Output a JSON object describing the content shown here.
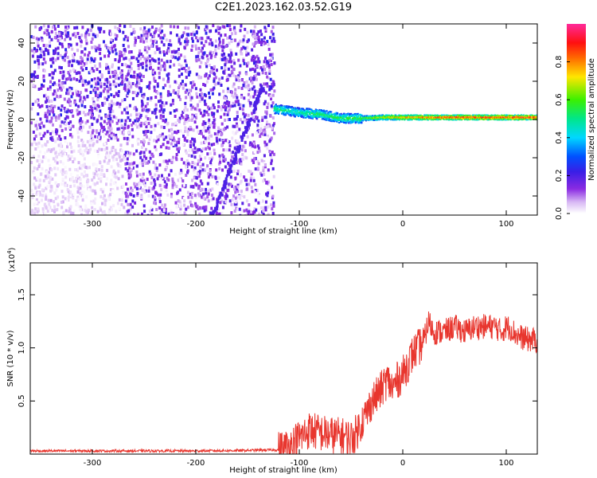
{
  "title": "C2E1.2023.162.03.52.G19",
  "colors": {
    "snr_line": "#e8362e",
    "axis": "#000000"
  },
  "chart_data": [
    {
      "type": "heatmap",
      "xlabel": "Height of straight line (km)",
      "ylabel": "Frequency (Hz)",
      "xlim": [
        -360,
        130
      ],
      "ylim": [
        -50,
        50
      ],
      "x_ticks": [
        -300,
        -200,
        -100,
        0,
        100
      ],
      "y_ticks": [
        -40,
        -20,
        0,
        20,
        40
      ],
      "colorbar": {
        "label": "Normalized spectral amplitude",
        "range": [
          0.0,
          1.0
        ],
        "ticks": [
          "0.0",
          "0.2",
          "0.4",
          "0.6",
          "0.8"
        ],
        "colormap": "white-purple-blue-cyan-green-yellow-red-pink"
      },
      "features": {
        "noise_region_x": [
          -360,
          -125
        ],
        "signal_band": [
          {
            "x": -125,
            "freq": 6,
            "amp": 0.55
          },
          {
            "x": -100,
            "freq": 4,
            "amp": 0.5
          },
          {
            "x": -80,
            "freq": 3,
            "amp": 0.55
          },
          {
            "x": -60,
            "freq": 1,
            "amp": 0.55
          },
          {
            "x": -40,
            "freq": 1,
            "amp": 0.6
          },
          {
            "x": -20,
            "freq": 1.5,
            "amp": 0.7
          },
          {
            "x": 0,
            "freq": 1.5,
            "amp": 0.8
          },
          {
            "x": 40,
            "freq": 1.5,
            "amp": 0.88
          },
          {
            "x": 80,
            "freq": 1.5,
            "amp": 0.9
          },
          {
            "x": 130,
            "freq": 1.5,
            "amp": 0.9
          }
        ]
      }
    },
    {
      "type": "line",
      "xlabel": "Height of straight line (km)",
      "ylabel": "SNR (10 * v/v)",
      "y_multiplier": "(x10^4)",
      "xlim": [
        -360,
        130
      ],
      "ylim": [
        0,
        1.8
      ],
      "x_ticks": [
        -300,
        -200,
        -100,
        0,
        100
      ],
      "y_ticks": [
        "0.5",
        "1.0",
        "1.5"
      ],
      "series": [
        {
          "x": [
            -360,
            -300,
            -200,
            -150,
            -120,
            -110,
            -100,
            -90,
            -80,
            -70,
            -60,
            -50,
            -45,
            -40,
            -35,
            -30,
            -25,
            -20,
            -15,
            -10,
            -5,
            0,
            10,
            20,
            25,
            30,
            40,
            50,
            60,
            70,
            80,
            90,
            95,
            100,
            105,
            110,
            120,
            130
          ],
          "y": [
            0.03,
            0.03,
            0.03,
            0.035,
            0.04,
            0.07,
            0.15,
            0.23,
            0.2,
            0.18,
            0.17,
            0.15,
            0.2,
            0.3,
            0.38,
            0.5,
            0.55,
            0.62,
            0.7,
            0.62,
            0.7,
            0.75,
            0.95,
            1.05,
            1.25,
            1.15,
            1.15,
            1.2,
            1.15,
            1.2,
            1.2,
            1.2,
            1.15,
            1.2,
            1.18,
            1.12,
            1.08,
            1.07
          ]
        }
      ]
    }
  ]
}
